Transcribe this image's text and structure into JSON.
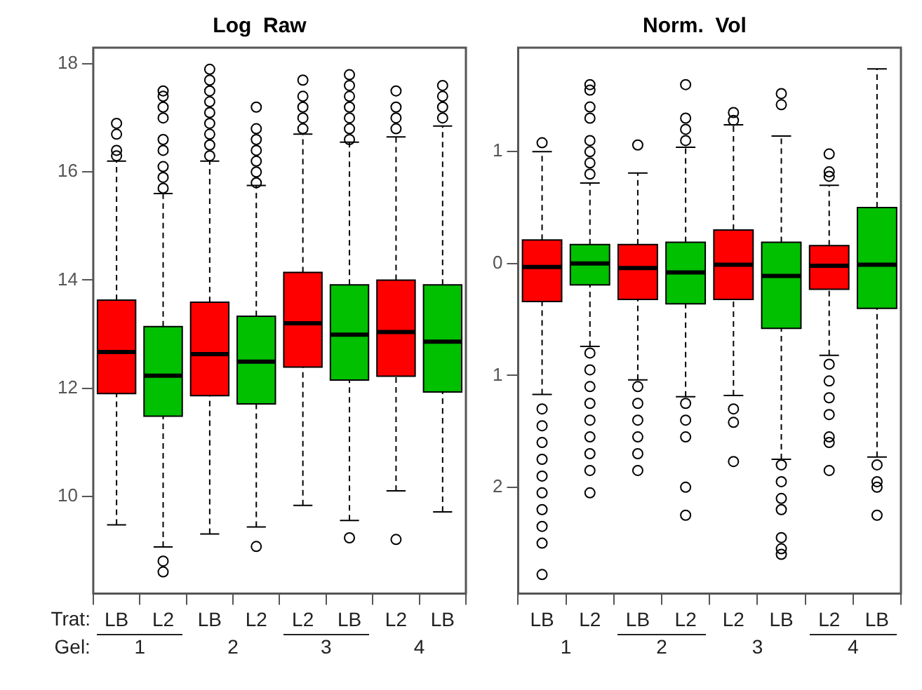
{
  "chart_data": [
    {
      "type": "box",
      "title": "Log  Raw",
      "categories": [
        "LB",
        "L2",
        "LB",
        "L2",
        "L2",
        "LB",
        "L2",
        "LB"
      ],
      "colors": [
        "#ff0000",
        "#00c000",
        "#ff0000",
        "#00c000",
        "#ff0000",
        "#00c000",
        "#ff0000",
        "#00c000"
      ],
      "marker": "circle",
      "ylim": [
        8.2,
        18.3
      ],
      "yticks": [
        10,
        12,
        14,
        16,
        18
      ],
      "annotations": [
        "Trat:",
        "Gel:",
        "1",
        "2",
        "3",
        "4"
      ],
      "boxes": [
        {
          "low": 9.47,
          "q1": 11.9,
          "median": 12.67,
          "q3": 13.63,
          "high": 16.2,
          "outliers": [
            16.3,
            16.4,
            16.7,
            16.9
          ]
        },
        {
          "low": 9.06,
          "q1": 11.48,
          "median": 12.23,
          "q3": 13.14,
          "high": 15.6,
          "outliers": [
            15.7,
            15.9,
            16.1,
            16.4,
            16.6,
            17.0,
            17.2,
            17.4,
            17.5,
            8.8,
            8.6
          ]
        },
        {
          "low": 9.3,
          "q1": 11.86,
          "median": 12.63,
          "q3": 13.59,
          "high": 16.2,
          "outliers": [
            16.3,
            16.5,
            16.7,
            16.9,
            17.1,
            17.3,
            17.5,
            17.7,
            17.9
          ]
        },
        {
          "low": 9.43,
          "q1": 11.71,
          "median": 12.49,
          "q3": 13.33,
          "high": 15.75,
          "outliers": [
            15.8,
            16.0,
            16.2,
            16.4,
            16.6,
            16.8,
            17.2,
            9.07
          ]
        },
        {
          "low": 9.83,
          "q1": 12.39,
          "median": 13.2,
          "q3": 14.14,
          "high": 16.7,
          "outliers": [
            16.8,
            17.0,
            17.2,
            17.4,
            17.7
          ]
        },
        {
          "low": 9.55,
          "q1": 12.15,
          "median": 12.99,
          "q3": 13.91,
          "high": 16.55,
          "outliers": [
            16.6,
            16.8,
            17.0,
            17.2,
            17.4,
            17.6,
            17.8,
            9.23
          ]
        },
        {
          "low": 10.1,
          "q1": 12.22,
          "median": 13.04,
          "q3": 14.0,
          "high": 16.65,
          "outliers": [
            16.8,
            17.0,
            17.2,
            17.5,
            9.2
          ]
        },
        {
          "low": 9.71,
          "q1": 11.93,
          "median": 12.86,
          "q3": 13.91,
          "high": 16.85,
          "outliers": [
            17.0,
            17.2,
            17.4,
            17.6
          ]
        }
      ]
    },
    {
      "type": "box",
      "title": "Norm.  Vol",
      "categories": [
        "LB",
        "L2",
        "LB",
        "L2",
        "L2",
        "LB",
        "L2",
        "LB"
      ],
      "colors": [
        "#ff0000",
        "#00c000",
        "#ff0000",
        "#00c000",
        "#ff0000",
        "#00c000",
        "#ff0000",
        "#00c000"
      ],
      "marker": "circle",
      "ylim": [
        -2.95,
        1.93
      ],
      "yticks": [
        {
          "value": -2,
          "label": "2"
        },
        {
          "value": -1,
          "label": "1"
        },
        0,
        1
      ],
      "annotations": [
        "1",
        "2",
        "3",
        "4"
      ],
      "boxes": [
        {
          "low": -1.17,
          "q1": -0.34,
          "median": -0.03,
          "q3": 0.21,
          "high": 1.0,
          "outliers": [
            1.08,
            -1.3,
            -1.45,
            -1.6,
            -1.75,
            -1.9,
            -2.05,
            -2.2,
            -2.35,
            -2.5,
            -2.78
          ]
        },
        {
          "low": -0.74,
          "q1": -0.19,
          "median": 0,
          "q3": 0.17,
          "high": 0.72,
          "outliers": [
            0.8,
            0.9,
            1.0,
            1.1,
            1.3,
            1.4,
            1.55,
            1.6,
            -0.8,
            -0.95,
            -1.1,
            -1.25,
            -1.4,
            -1.55,
            -1.7,
            -1.85,
            -2.05
          ]
        },
        {
          "low": -1.04,
          "q1": -0.32,
          "median": -0.04,
          "q3": 0.17,
          "high": 0.81,
          "outliers": [
            1.06,
            -1.1,
            -1.25,
            -1.4,
            -1.55,
            -1.7,
            -1.85
          ]
        },
        {
          "low": -1.19,
          "q1": -0.36,
          "median": -0.08,
          "q3": 0.19,
          "high": 1.04,
          "outliers": [
            1.1,
            1.2,
            1.3,
            1.6,
            -1.25,
            -1.4,
            -1.55,
            -2.0,
            -2.25
          ]
        },
        {
          "low": -1.18,
          "q1": -0.32,
          "median": -0.01,
          "q3": 0.3,
          "high": 1.24,
          "outliers": [
            1.28,
            1.35,
            -1.3,
            -1.42,
            -1.77
          ]
        },
        {
          "low": -1.75,
          "q1": -0.58,
          "median": -0.11,
          "q3": 0.19,
          "high": 1.14,
          "outliers": [
            1.42,
            1.52,
            -1.8,
            -1.95,
            -2.1,
            -2.2,
            -2.45,
            -2.55,
            -2.6
          ]
        },
        {
          "low": -0.82,
          "q1": -0.23,
          "median": -0.02,
          "q3": 0.16,
          "high": 0.7,
          "outliers": [
            0.78,
            0.82,
            0.98,
            -0.9,
            -1.05,
            -1.2,
            -1.35,
            -1.55,
            -1.6,
            -1.85
          ]
        },
        {
          "low": -1.73,
          "q1": -0.4,
          "median": -0.01,
          "q3": 0.5,
          "high": 1.74,
          "outliers": [
            -1.8,
            -1.95,
            -2.0,
            -2.25
          ]
        }
      ]
    }
  ]
}
